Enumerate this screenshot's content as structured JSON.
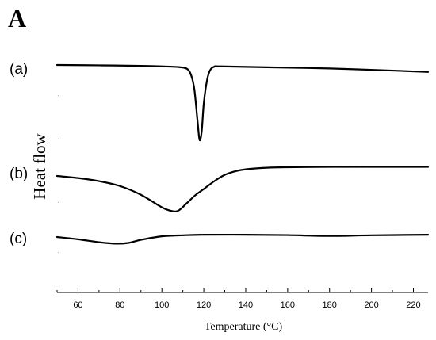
{
  "panel_letter": "A",
  "chart_data": {
    "type": "line",
    "title": "",
    "xlabel": "Temperature (°C)",
    "ylabel": "Heat flow",
    "xlim": [
      50,
      227
    ],
    "xticks": [
      60,
      80,
      100,
      120,
      140,
      160,
      180,
      200,
      220
    ],
    "grid": false,
    "legend": "none",
    "series": [
      {
        "label": "(a)",
        "x": [
          50,
          70,
          90,
          100,
          108,
          112,
          114,
          115.5,
          117,
          118,
          119,
          120,
          121.5,
          123,
          125,
          128,
          150,
          180,
          210,
          227
        ],
        "y": [
          0,
          -0.2,
          -0.5,
          -0.8,
          -1.2,
          -2.2,
          -6,
          -14,
          -32,
          -43,
          -38,
          -22,
          -9,
          -3,
          -1,
          -0.8,
          -1.3,
          -2,
          -3.2,
          -4
        ]
      },
      {
        "label": "(b)",
        "x": [
          50,
          60,
          70,
          80,
          90,
          100,
          105,
          108,
          112,
          116,
          120,
          125,
          130,
          135,
          140,
          150,
          160,
          180,
          200,
          227
        ],
        "y": [
          0,
          -1.2,
          -3,
          -5.8,
          -10.8,
          -18,
          -20.2,
          -19.8,
          -15.5,
          -11,
          -7.5,
          -3,
          0.6,
          2.7,
          3.8,
          4.7,
          5,
          5.2,
          5.2,
          5.2
        ]
      },
      {
        "label": "(c)",
        "x": [
          50,
          60,
          70,
          78,
          84,
          90,
          100,
          110,
          120,
          140,
          160,
          180,
          200,
          227
        ],
        "y": [
          0,
          -1.3,
          -3,
          -3.8,
          -3.4,
          -1.6,
          0.4,
          1,
          1.3,
          1.3,
          1.1,
          0.6,
          1,
          1.3
        ]
      }
    ]
  }
}
